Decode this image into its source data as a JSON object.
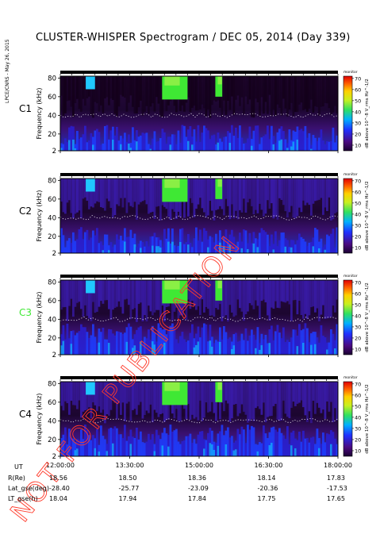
{
  "title": "CLUSTER-WHISPER Spectrogram / DEC 05, 2014 (Day 339)",
  "side_note": "LPCE/CNRS - May 26, 2015",
  "watermark": "NOT FOR PUBLICATION",
  "colors": {
    "black_bg": "#0a0008",
    "purple": "#3a0a50",
    "blue": "#1a24ff",
    "green": "#3fe834"
  },
  "chart_data": {
    "type": "heatmap",
    "panels": [
      {
        "label": "C1",
        "label_color": "#000000",
        "corner_text": "monitor"
      },
      {
        "label": "C2",
        "label_color": "#000000",
        "corner_text": "monitor"
      },
      {
        "label": "C3",
        "label_color": "#3fe834",
        "corner_text": "monitor"
      },
      {
        "label": "C4",
        "label_color": "#000000",
        "corner_text": "monitor"
      }
    ],
    "ylabel": "Frequency (kHz)",
    "y_ticks": [
      "80",
      "60",
      "40",
      "20",
      "2"
    ],
    "y_values": [
      80,
      60,
      40,
      20,
      2
    ],
    "ylim": [
      2,
      82
    ],
    "x_ticks": [
      "12:00:00",
      "13:30:00",
      "15:00:00",
      "16:30:00",
      "18:00:00"
    ],
    "x_hours": [
      12,
      13.5,
      15,
      16.5,
      18
    ],
    "xlim": [
      12,
      18
    ],
    "colorbar": {
      "label": "dB above 10^-8 V_rms Hz^-1/2",
      "ticks": [
        "70",
        "60",
        "50",
        "40",
        "30",
        "20",
        "10"
      ],
      "values": [
        70,
        60,
        50,
        40,
        30,
        20,
        10
      ],
      "range": [
        5,
        72
      ]
    },
    "plasma_line_kHz": 40,
    "ephemeris": {
      "UT": [
        "12:00:00",
        "13:30:00",
        "15:00:00",
        "16:30:00",
        "18:00:00"
      ],
      "rows": [
        {
          "label": "R(Re)",
          "values": [
            "18.56",
            "18.50",
            "18.36",
            "18.14",
            "17.83"
          ]
        },
        {
          "label": "Lat_gse(deg)",
          "values": [
            "-28.40",
            "-25.77",
            "-23.09",
            "-20.36",
            "-17.53"
          ]
        },
        {
          "label": "LT_gse(h)",
          "values": [
            "18.04",
            "17.94",
            "17.84",
            "17.75",
            "17.65"
          ]
        }
      ],
      "ut_label": "UT"
    }
  }
}
